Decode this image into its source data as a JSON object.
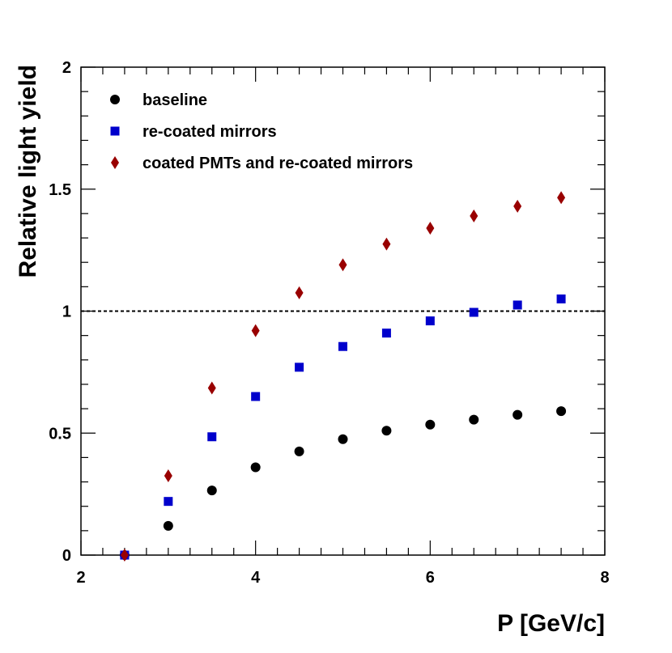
{
  "chart_data": {
    "type": "scatter",
    "title": "",
    "xlabel": "P [GeV/c]",
    "ylabel": "Relative light yield",
    "xlim": [
      2,
      8
    ],
    "ylim": [
      0,
      2
    ],
    "x_ticks": [
      2,
      4,
      6,
      8
    ],
    "x_tick_labels": [
      "2",
      "4",
      "6",
      "8"
    ],
    "y_ticks": [
      0,
      0.5,
      1,
      1.5,
      2
    ],
    "y_tick_labels": [
      "0",
      "0.5",
      "1",
      "1.5",
      "2"
    ],
    "grid": false,
    "legend_position": "top-left",
    "reference_line": {
      "y": 1,
      "style": "dashed",
      "color": "#000000"
    },
    "series": [
      {
        "name": "baseline",
        "marker": "circle",
        "color": "#000000",
        "x": [
          2.5,
          3.0,
          3.5,
          4.0,
          4.5,
          5.0,
          5.5,
          6.0,
          6.5,
          7.0,
          7.5
        ],
        "y": [
          0.0,
          0.12,
          0.265,
          0.36,
          0.425,
          0.475,
          0.51,
          0.535,
          0.555,
          0.575,
          0.59
        ]
      },
      {
        "name": "re-coated mirrors",
        "marker": "square",
        "color": "#0000cc",
        "x": [
          2.5,
          3.0,
          3.5,
          4.0,
          4.5,
          5.0,
          5.5,
          6.0,
          6.5,
          7.0,
          7.5
        ],
        "y": [
          0.0,
          0.22,
          0.485,
          0.65,
          0.77,
          0.855,
          0.91,
          0.96,
          0.995,
          1.025,
          1.05
        ]
      },
      {
        "name": "coated PMTs and re-coated mirrors",
        "marker": "diamond",
        "color": "#990000",
        "x": [
          2.5,
          3.0,
          3.5,
          4.0,
          4.5,
          5.0,
          5.5,
          6.0,
          6.5,
          7.0,
          7.5
        ],
        "y": [
          0.0,
          0.325,
          0.685,
          0.92,
          1.075,
          1.19,
          1.275,
          1.34,
          1.39,
          1.43,
          1.465
        ]
      }
    ]
  }
}
